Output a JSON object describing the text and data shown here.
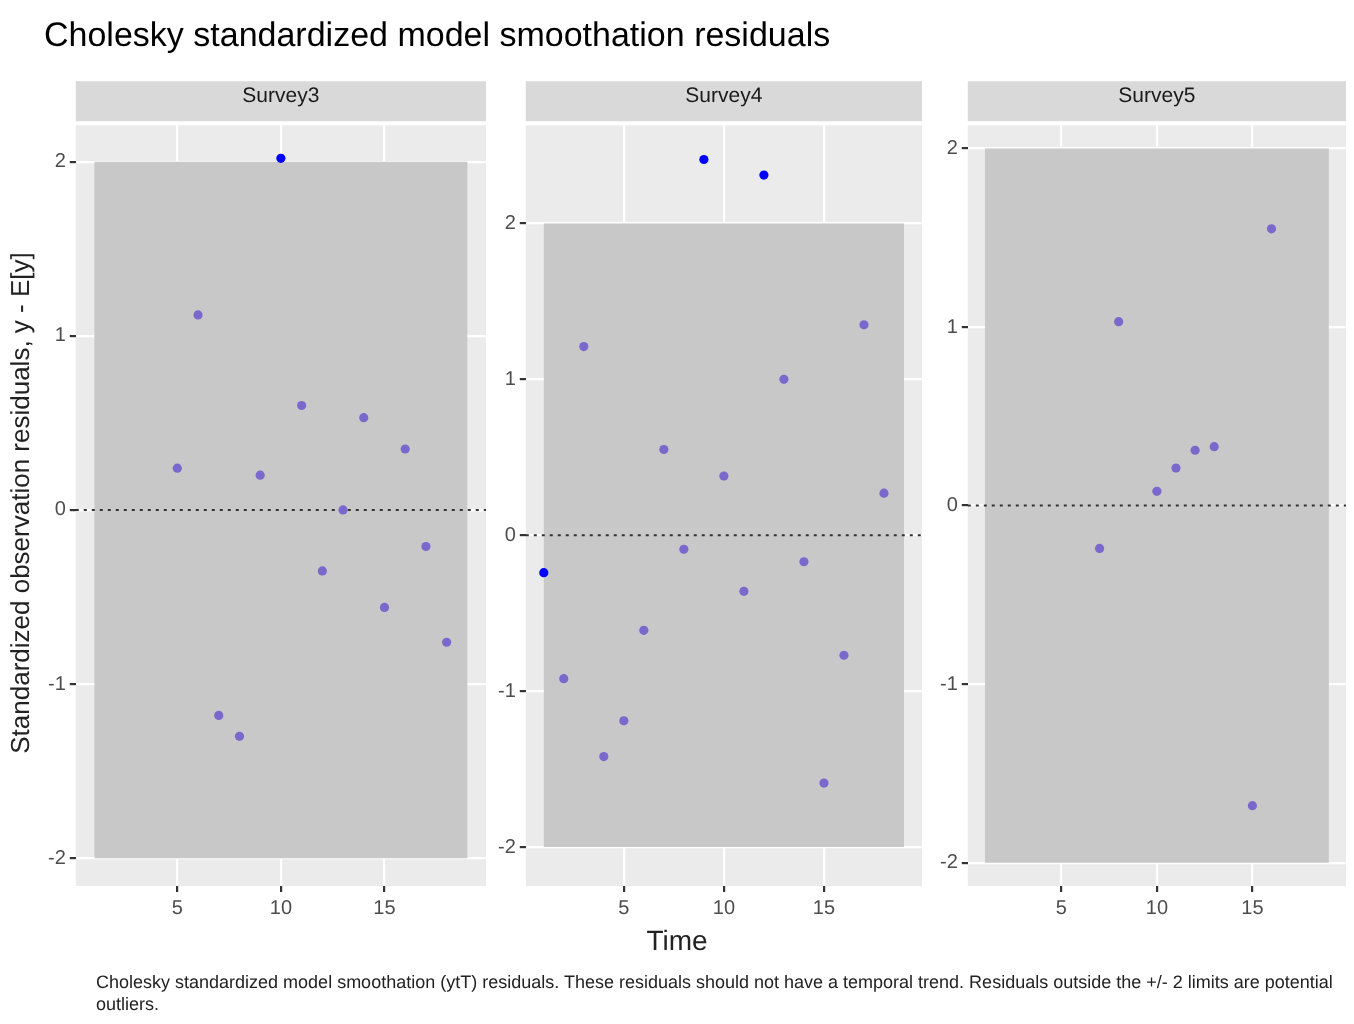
{
  "chart_data": [
    {
      "type": "scatter",
      "title": "Cholesky standardized model smoothation residuals",
      "subtitle": "Survey3",
      "ylabel": "Standardized observation residuals, y - E[y]",
      "marker": "circle",
      "grid": true,
      "x": [
        5,
        6,
        7,
        8,
        9,
        10,
        11,
        12,
        13,
        14,
        15,
        16,
        17,
        18
      ],
      "values": [
        0.24,
        1.12,
        -1.18,
        -1.3,
        0.2,
        2.02,
        0.6,
        -0.35,
        0,
        0.53,
        -0.56,
        0.35,
        -0.21,
        -0.76
      ],
      "colors": [
        "#7b68cc",
        "#7b68cc",
        "#7b68cc",
        "#7b68cc",
        "#7b68cc",
        "#0000ff",
        "#7b68cc",
        "#7b68cc",
        "#7b68cc",
        "#7b68cc",
        "#7b68cc",
        "#7b68cc",
        "#7b68cc",
        "#7b68cc"
      ],
      "xlim": [
        0.1,
        19.9
      ],
      "xticks": [
        5,
        10,
        15
      ],
      "ylim": [
        -2.16,
        2.21
      ],
      "yticks": [
        -2,
        -1,
        0,
        1,
        2
      ],
      "bands": [
        {
          "axis": "y",
          "from": -2,
          "to": 2,
          "color": "#c8c8c8"
        }
      ],
      "ref_lines": [
        {
          "axis": "y",
          "value": 0,
          "color": "#333333",
          "line_style": "dotted"
        }
      ],
      "annotations": [
        "Cholesky standardized model smoothation (ytT) residuals. These residuals should not have a temporal trend. Residuals outside the +/- 2 limits are potential outliers."
      ]
    },
    {
      "type": "scatter",
      "subtitle": "Survey4",
      "xlabel": "Time",
      "marker": "circle",
      "grid": true,
      "x": [
        1,
        2,
        3,
        4,
        5,
        6,
        7,
        8,
        9,
        10,
        11,
        12,
        13,
        14,
        15,
        16,
        17,
        18
      ],
      "values": [
        -0.24,
        -0.92,
        1.21,
        -1.42,
        -1.19,
        -0.61,
        0.55,
        -0.09,
        2.41,
        0.38,
        -0.36,
        2.31,
        1,
        -0.17,
        -1.59,
        -0.77,
        1.35,
        0.27
      ],
      "colors": [
        "#0000ff",
        "#7b68cc",
        "#7b68cc",
        "#7b68cc",
        "#7b68cc",
        "#7b68cc",
        "#7b68cc",
        "#7b68cc",
        "#0000ff",
        "#7b68cc",
        "#7b68cc",
        "#0000ff",
        "#7b68cc",
        "#7b68cc",
        "#7b68cc",
        "#7b68cc",
        "#7b68cc",
        "#7b68cc"
      ],
      "xlim": [
        0.1,
        19.9
      ],
      "xticks": [
        5,
        10,
        15
      ],
      "ylim": [
        -2.25,
        2.63
      ],
      "yticks": [
        -2,
        -1,
        0,
        1,
        2
      ],
      "bands": [
        {
          "axis": "y",
          "from": -2,
          "to": 2,
          "color": "#c8c8c8"
        }
      ],
      "ref_lines": [
        {
          "axis": "y",
          "value": 0,
          "color": "#333333",
          "line_style": "dotted"
        }
      ]
    },
    {
      "type": "scatter",
      "subtitle": "Survey5",
      "marker": "circle",
      "grid": true,
      "x": [
        7,
        8,
        10,
        11,
        12,
        13,
        15,
        16
      ],
      "values": [
        -0.24,
        1.03,
        0.08,
        0.21,
        0.31,
        0.33,
        -1.68,
        1.55
      ],
      "colors": [
        "#7b68cc",
        "#7b68cc",
        "#7b68cc",
        "#7b68cc",
        "#7b68cc",
        "#7b68cc",
        "#7b68cc",
        "#7b68cc"
      ],
      "xlim": [
        0.1,
        19.9
      ],
      "xticks": [
        5,
        10,
        15
      ],
      "ylim": [
        -2.13,
        2.13
      ],
      "yticks": [
        -2,
        -1,
        0,
        1,
        2
      ],
      "bands": [
        {
          "axis": "y",
          "from": -2,
          "to": 2,
          "color": "#c8c8c8"
        }
      ],
      "ref_lines": [
        {
          "axis": "y",
          "value": 0,
          "color": "#333333",
          "line_style": "dotted"
        }
      ]
    }
  ]
}
